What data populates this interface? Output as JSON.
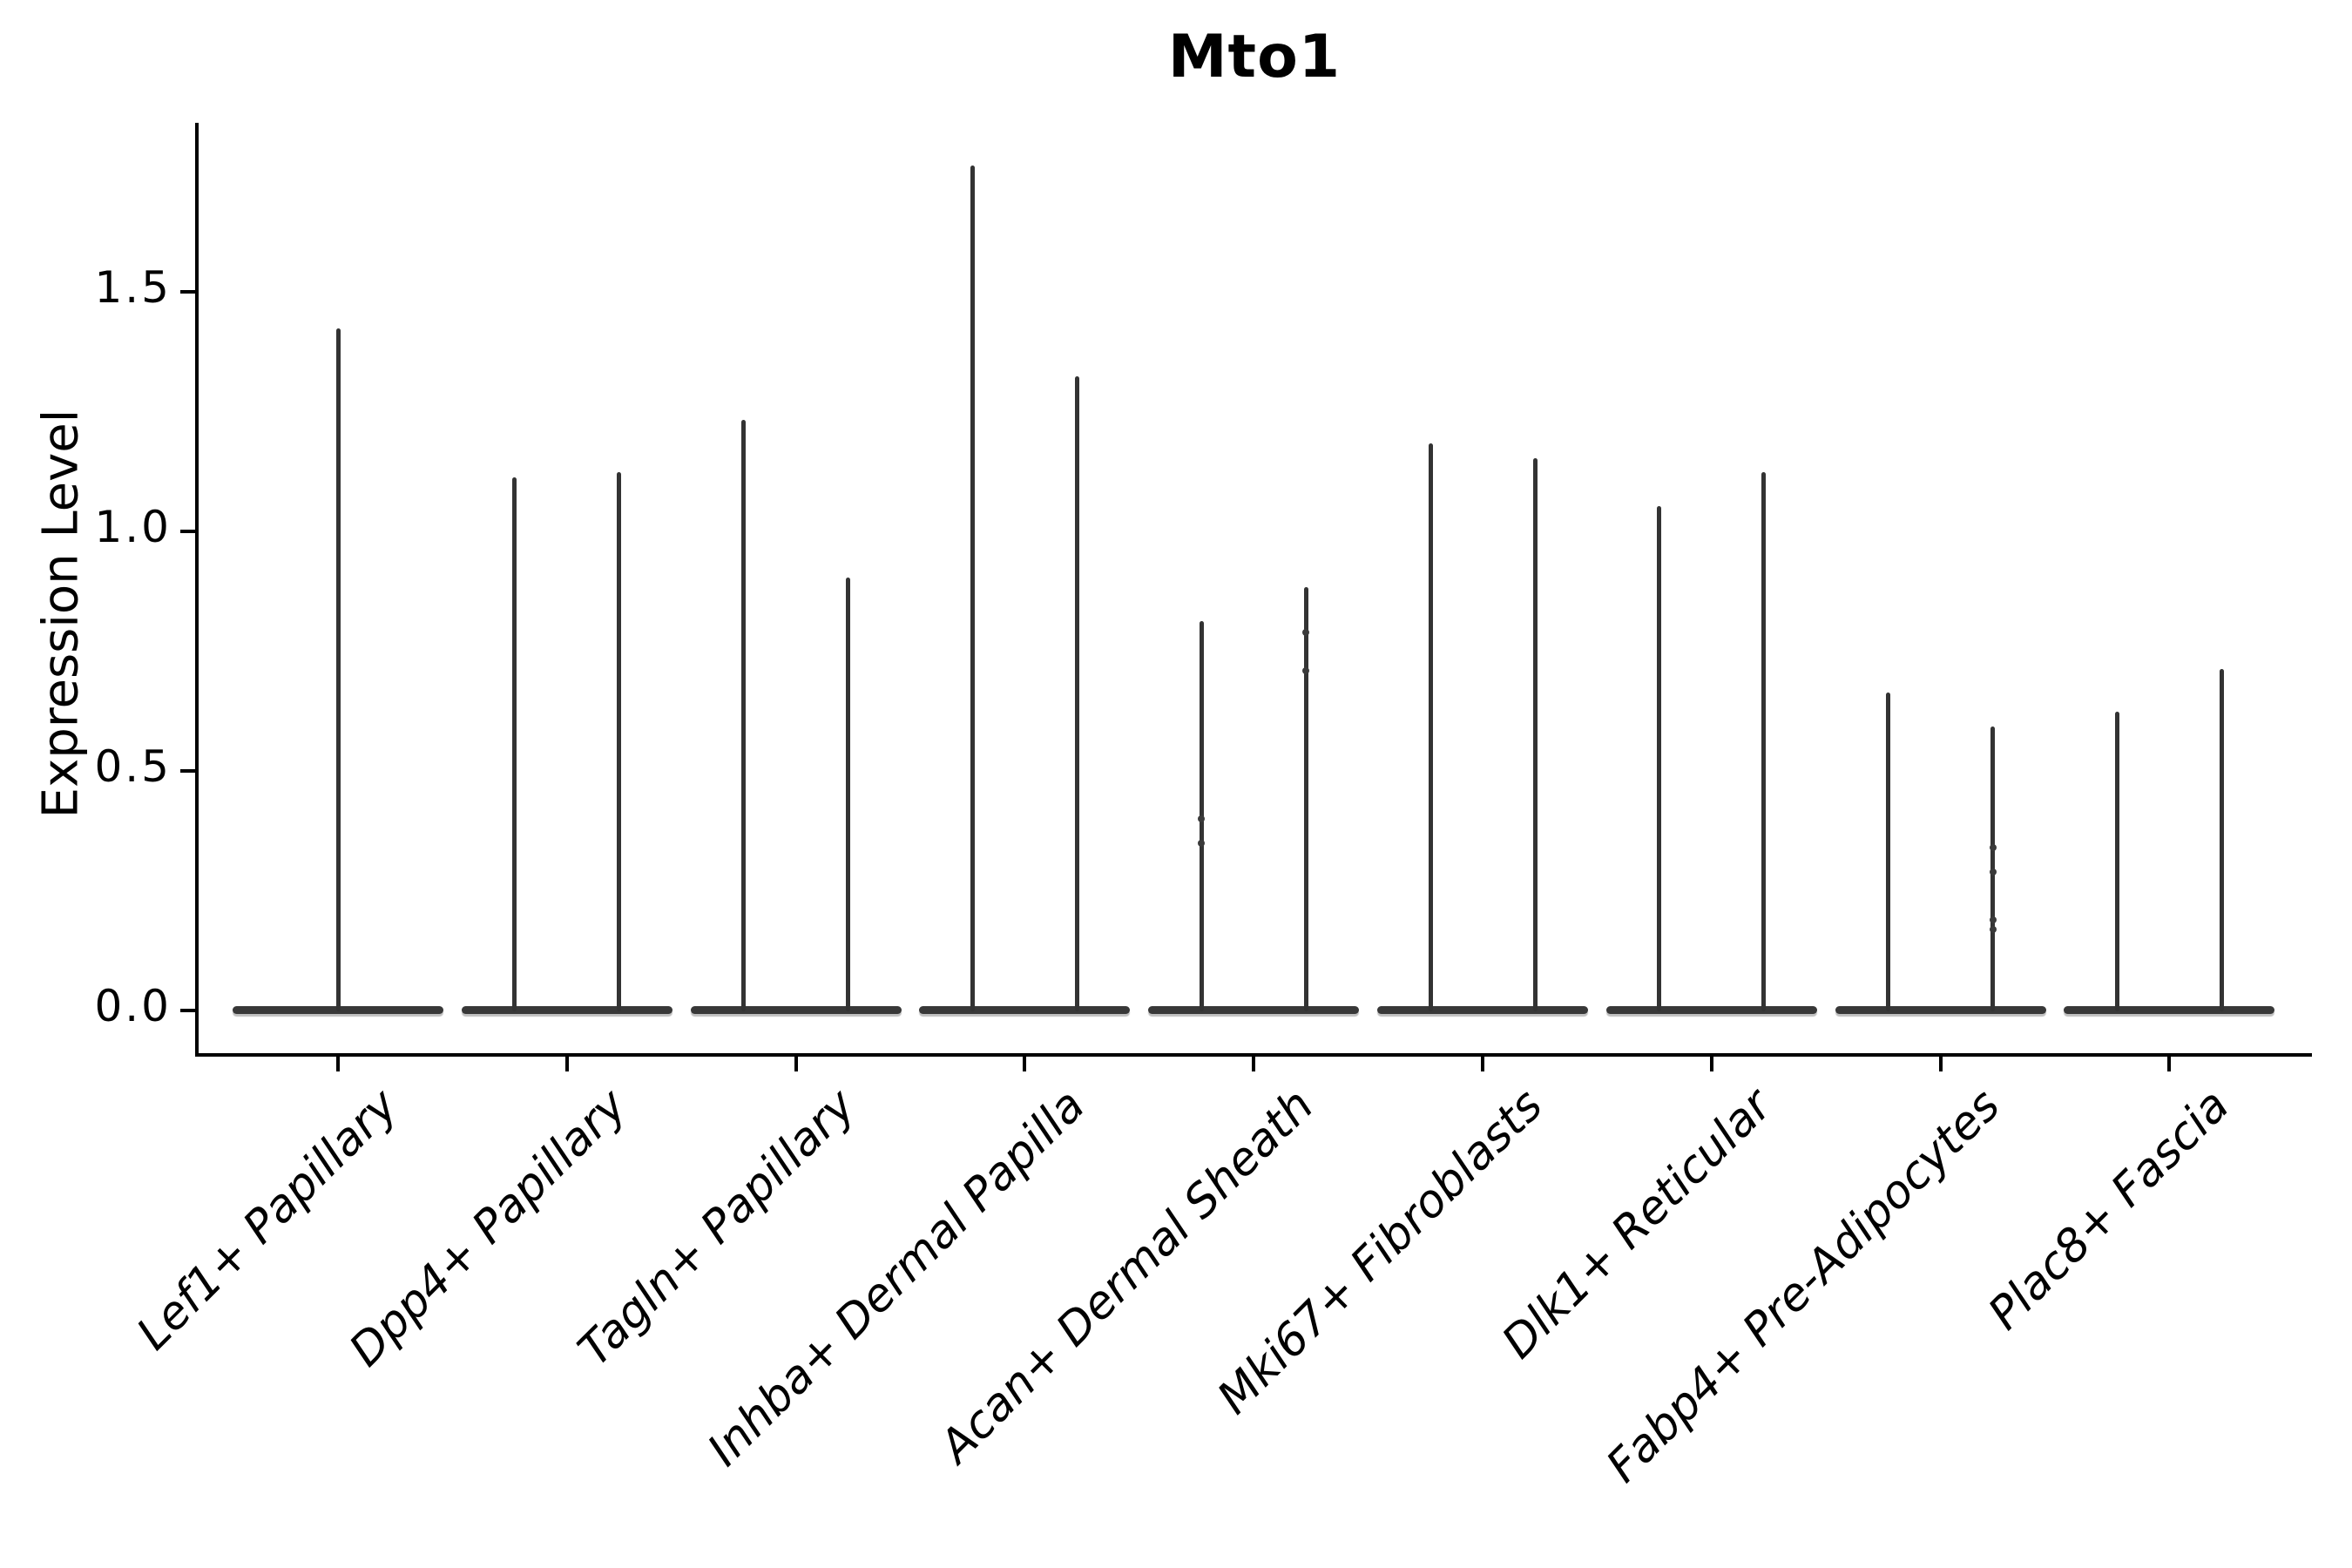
{
  "title": "Mto1",
  "axes": {
    "ylabel": "Expression Level",
    "ytick_labels": [
      "0.0",
      "0.5",
      "1.0",
      "1.5"
    ],
    "xtick_labels": [
      "Lef1+ Papillary",
      "Dpp4+ Papillary",
      "Tagln+ Papillary",
      "Inhba+ Dermal Papilla",
      "Acan+ Dermal Sheath",
      "Mki67+ Fibroblasts",
      "Dlk1+ Reticular",
      "Fabp4+ Pre-Adipocytes",
      "Plac8+ Fascia"
    ]
  },
  "colors": {
    "violin": "#383838",
    "axis": "#000000",
    "text": "#000000",
    "background": "#ffffff"
  },
  "chart_data": {
    "type": "violin",
    "title": "Mto1",
    "xlabel": "",
    "ylabel": "Expression Level",
    "yticks": [
      0.0,
      0.5,
      1.0,
      1.5
    ],
    "ylim": [
      -0.09,
      1.85
    ],
    "grid": false,
    "legend": null,
    "baseline_value": 0.0,
    "categories": [
      "Lef1+ Papillary",
      "Dpp4+ Papillary",
      "Tagln+ Papillary",
      "Inhba+ Dermal Papilla",
      "Acan+ Dermal Sheath",
      "Mki67+ Fibroblasts",
      "Dlk1+ Reticular",
      "Fabp4+ Pre-Adipocytes",
      "Plac8+ Fascia"
    ],
    "violins": [
      {
        "category": "Lef1+ Papillary",
        "spike_max_values": [
          1.42
        ],
        "jitter_values": [
          []
        ]
      },
      {
        "category": "Dpp4+ Papillary",
        "spike_max_values": [
          1.11,
          1.12
        ],
        "jitter_values": [
          [],
          []
        ]
      },
      {
        "category": "Tagln+ Papillary",
        "spike_max_values": [
          1.23,
          0.9
        ],
        "jitter_values": [
          [],
          []
        ]
      },
      {
        "category": "Inhba+ Dermal Papilla",
        "spike_max_values": [
          1.76,
          1.32
        ],
        "jitter_values": [
          [],
          []
        ]
      },
      {
        "category": "Acan+ Dermal Sheath",
        "spike_max_values": [
          0.81,
          0.88
        ],
        "jitter_values": [
          [
            0.4,
            0.35
          ],
          [
            0.79,
            0.71
          ]
        ]
      },
      {
        "category": "Mki67+ Fibroblasts",
        "spike_max_values": [
          1.18,
          1.15
        ],
        "jitter_values": [
          [],
          []
        ]
      },
      {
        "category": "Dlk1+ Reticular",
        "spike_max_values": [
          1.05,
          1.12
        ],
        "jitter_values": [
          [],
          []
        ]
      },
      {
        "category": "Fabp4+ Pre-Adipocytes",
        "spike_max_values": [
          0.66,
          0.59
        ],
        "jitter_values": [
          [],
          [
            0.34,
            0.29,
            0.19,
            0.17
          ]
        ]
      },
      {
        "category": "Plac8+ Fascia",
        "spike_max_values": [
          0.62,
          0.71
        ],
        "jitter_values": [
          [],
          []
        ]
      }
    ]
  }
}
